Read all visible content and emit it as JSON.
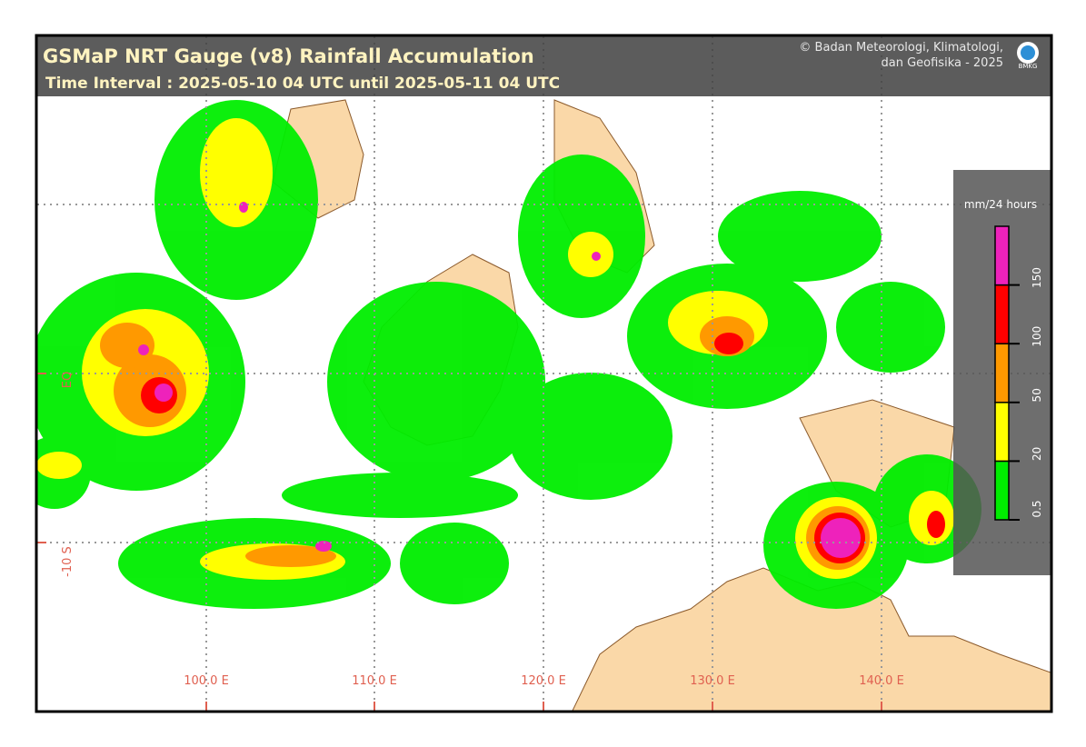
{
  "header": {
    "title": "GSMaP NRT Gauge (v8) Rainfall Accumulation",
    "subtitle": "Time Interval : 2025-05-10 04 UTC until 2025-05-11 04 UTC",
    "credit_line1": "© Badan Meteorologi, Klimatologi,",
    "credit_line2": "dan Geofisika -  2025",
    "logo_text": "BMKG"
  },
  "legend": {
    "label": "mm/24 hours",
    "ticks": [
      0.5,
      20,
      50,
      100,
      150
    ],
    "colors": [
      "#00ee00",
      "#ffff00",
      "#ff9900",
      "#ff0000",
      "#ee22bb"
    ]
  },
  "map": {
    "longitude_labels": [
      "100.0 E",
      "110.0 E",
      "120.0 E",
      "130.0 E",
      "140.0 E"
    ],
    "latitude_labels": [
      "EQ",
      "-10 S"
    ]
  }
}
